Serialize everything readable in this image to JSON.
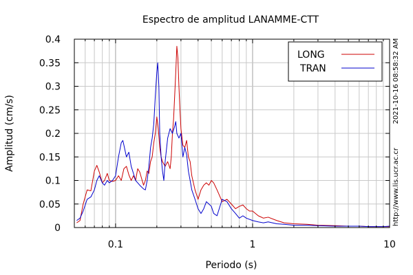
{
  "chart_data": {
    "type": "line",
    "title": "Espectro de amplitud LANAMME-CTT",
    "xlabel": "Periodo (s)",
    "ylabel": "Amplitud (cm/s)",
    "xscale": "log",
    "xlim": [
      0.05,
      10
    ],
    "ylim": [
      0,
      0.4
    ],
    "x_ticks": [
      {
        "value": 0.1,
        "label": "0.1"
      },
      {
        "value": 1,
        "label": "1"
      },
      {
        "value": 10,
        "label": "10"
      }
    ],
    "y_ticks": [
      {
        "value": 0,
        "label": "0"
      },
      {
        "value": 0.05,
        "label": "0.05"
      },
      {
        "value": 0.1,
        "label": "0.1"
      },
      {
        "value": 0.15,
        "label": "0.15"
      },
      {
        "value": 0.2,
        "label": "0.2"
      },
      {
        "value": 0.25,
        "label": "0.25"
      },
      {
        "value": 0.3,
        "label": "0.3"
      },
      {
        "value": 0.35,
        "label": "0.35"
      },
      {
        "value": 0.4,
        "label": "0.4"
      }
    ],
    "grid": true,
    "legend_position": "top-right",
    "side_texts": [
      "2021-10-16 08:58:32 AM",
      "http://www.lis.ucr.ac.cr"
    ],
    "series": [
      {
        "name": "LONG",
        "color": "#cc0000",
        "points": [
          [
            0.052,
            0.01
          ],
          [
            0.055,
            0.015
          ],
          [
            0.058,
            0.05
          ],
          [
            0.062,
            0.08
          ],
          [
            0.066,
            0.078
          ],
          [
            0.07,
            0.12
          ],
          [
            0.073,
            0.132
          ],
          [
            0.076,
            0.118
          ],
          [
            0.08,
            0.095
          ],
          [
            0.083,
            0.1
          ],
          [
            0.087,
            0.115
          ],
          [
            0.09,
            0.1
          ],
          [
            0.095,
            0.098
          ],
          [
            0.1,
            0.1
          ],
          [
            0.105,
            0.11
          ],
          [
            0.11,
            0.1
          ],
          [
            0.115,
            0.125
          ],
          [
            0.12,
            0.13
          ],
          [
            0.125,
            0.112
          ],
          [
            0.13,
            0.1
          ],
          [
            0.135,
            0.11
          ],
          [
            0.14,
            0.1
          ],
          [
            0.145,
            0.125
          ],
          [
            0.15,
            0.118
          ],
          [
            0.16,
            0.09
          ],
          [
            0.165,
            0.1
          ],
          [
            0.17,
            0.12
          ],
          [
            0.175,
            0.115
          ],
          [
            0.18,
            0.14
          ],
          [
            0.185,
            0.15
          ],
          [
            0.19,
            0.18
          ],
          [
            0.195,
            0.2
          ],
          [
            0.2,
            0.235
          ],
          [
            0.205,
            0.21
          ],
          [
            0.21,
            0.17
          ],
          [
            0.215,
            0.15
          ],
          [
            0.22,
            0.14
          ],
          [
            0.23,
            0.13
          ],
          [
            0.24,
            0.14
          ],
          [
            0.25,
            0.125
          ],
          [
            0.255,
            0.15
          ],
          [
            0.26,
            0.2
          ],
          [
            0.265,
            0.23
          ],
          [
            0.27,
            0.28
          ],
          [
            0.275,
            0.33
          ],
          [
            0.28,
            0.385
          ],
          [
            0.285,
            0.36
          ],
          [
            0.29,
            0.3
          ],
          [
            0.295,
            0.25
          ],
          [
            0.3,
            0.21
          ],
          [
            0.31,
            0.175
          ],
          [
            0.32,
            0.17
          ],
          [
            0.33,
            0.185
          ],
          [
            0.34,
            0.15
          ],
          [
            0.35,
            0.14
          ],
          [
            0.36,
            0.11
          ],
          [
            0.38,
            0.08
          ],
          [
            0.4,
            0.06
          ],
          [
            0.42,
            0.08
          ],
          [
            0.44,
            0.09
          ],
          [
            0.46,
            0.095
          ],
          [
            0.48,
            0.09
          ],
          [
            0.5,
            0.1
          ],
          [
            0.52,
            0.095
          ],
          [
            0.55,
            0.08
          ],
          [
            0.6,
            0.055
          ],
          [
            0.65,
            0.06
          ],
          [
            0.7,
            0.05
          ],
          [
            0.75,
            0.04
          ],
          [
            0.8,
            0.045
          ],
          [
            0.85,
            0.048
          ],
          [
            0.9,
            0.04
          ],
          [
            0.95,
            0.035
          ],
          [
            1.0,
            0.035
          ],
          [
            1.1,
            0.025
          ],
          [
            1.2,
            0.02
          ],
          [
            1.3,
            0.022
          ],
          [
            1.5,
            0.015
          ],
          [
            1.7,
            0.01
          ],
          [
            2.0,
            0.008
          ],
          [
            2.5,
            0.007
          ],
          [
            3.0,
            0.005
          ],
          [
            4.0,
            0.004
          ],
          [
            5.0,
            0.003
          ],
          [
            6.0,
            0.003
          ],
          [
            7.0,
            0.002
          ],
          [
            8.0,
            0.002
          ],
          [
            9.0,
            0.002
          ],
          [
            10.0,
            0.002
          ]
        ]
      },
      {
        "name": "TRAN",
        "color": "#0000cc",
        "points": [
          [
            0.052,
            0.015
          ],
          [
            0.055,
            0.02
          ],
          [
            0.058,
            0.035
          ],
          [
            0.062,
            0.06
          ],
          [
            0.066,
            0.065
          ],
          [
            0.07,
            0.08
          ],
          [
            0.073,
            0.1
          ],
          [
            0.076,
            0.11
          ],
          [
            0.08,
            0.095
          ],
          [
            0.083,
            0.09
          ],
          [
            0.087,
            0.1
          ],
          [
            0.09,
            0.095
          ],
          [
            0.095,
            0.1
          ],
          [
            0.1,
            0.11
          ],
          [
            0.105,
            0.15
          ],
          [
            0.11,
            0.18
          ],
          [
            0.113,
            0.185
          ],
          [
            0.115,
            0.175
          ],
          [
            0.12,
            0.15
          ],
          [
            0.125,
            0.16
          ],
          [
            0.13,
            0.13
          ],
          [
            0.135,
            0.115
          ],
          [
            0.14,
            0.1
          ],
          [
            0.145,
            0.095
          ],
          [
            0.15,
            0.09
          ],
          [
            0.16,
            0.082
          ],
          [
            0.165,
            0.08
          ],
          [
            0.17,
            0.1
          ],
          [
            0.175,
            0.13
          ],
          [
            0.18,
            0.17
          ],
          [
            0.185,
            0.19
          ],
          [
            0.19,
            0.22
          ],
          [
            0.195,
            0.28
          ],
          [
            0.2,
            0.33
          ],
          [
            0.203,
            0.35
          ],
          [
            0.207,
            0.3
          ],
          [
            0.21,
            0.2
          ],
          [
            0.215,
            0.15
          ],
          [
            0.22,
            0.12
          ],
          [
            0.225,
            0.1
          ],
          [
            0.23,
            0.14
          ],
          [
            0.24,
            0.19
          ],
          [
            0.25,
            0.21
          ],
          [
            0.26,
            0.2
          ],
          [
            0.27,
            0.215
          ],
          [
            0.275,
            0.225
          ],
          [
            0.28,
            0.2
          ],
          [
            0.29,
            0.19
          ],
          [
            0.3,
            0.2
          ],
          [
            0.31,
            0.15
          ],
          [
            0.32,
            0.17
          ],
          [
            0.33,
            0.155
          ],
          [
            0.34,
            0.12
          ],
          [
            0.35,
            0.1
          ],
          [
            0.36,
            0.08
          ],
          [
            0.38,
            0.06
          ],
          [
            0.4,
            0.04
          ],
          [
            0.42,
            0.03
          ],
          [
            0.44,
            0.04
          ],
          [
            0.46,
            0.055
          ],
          [
            0.48,
            0.05
          ],
          [
            0.5,
            0.045
          ],
          [
            0.52,
            0.03
          ],
          [
            0.55,
            0.025
          ],
          [
            0.6,
            0.06
          ],
          [
            0.65,
            0.055
          ],
          [
            0.7,
            0.04
          ],
          [
            0.75,
            0.03
          ],
          [
            0.8,
            0.02
          ],
          [
            0.85,
            0.025
          ],
          [
            0.9,
            0.02
          ],
          [
            1.0,
            0.015
          ],
          [
            1.1,
            0.012
          ],
          [
            1.2,
            0.01
          ],
          [
            1.3,
            0.012
          ],
          [
            1.5,
            0.008
          ],
          [
            1.7,
            0.007
          ],
          [
            2.0,
            0.005
          ],
          [
            2.5,
            0.005
          ],
          [
            3.0,
            0.004
          ],
          [
            4.0,
            0.003
          ],
          [
            5.0,
            0.003
          ],
          [
            6.0,
            0.003
          ],
          [
            7.0,
            0.002
          ],
          [
            8.0,
            0.002
          ],
          [
            9.0,
            0.002
          ],
          [
            10.0,
            0.003
          ]
        ]
      }
    ]
  }
}
